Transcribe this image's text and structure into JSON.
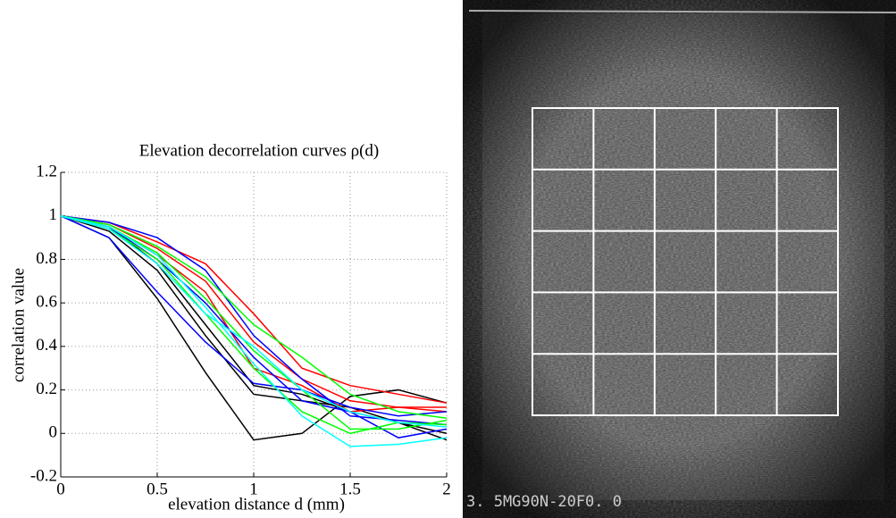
{
  "chart_data": {
    "type": "line",
    "title": "Elevation decorrelation curves ρ(d)",
    "xlabel": "elevation distance d (mm)",
    "ylabel": "correlation value",
    "x": [
      0,
      0.25,
      0.5,
      0.75,
      1,
      1.25,
      1.5,
      1.75,
      2
    ],
    "xlim": [
      0,
      2
    ],
    "xticks": [
      0,
      0.5,
      1,
      1.5,
      2
    ],
    "ylim": [
      -0.2,
      1.2
    ],
    "yticks": [
      -0.2,
      0,
      0.2,
      0.4,
      0.6,
      0.8,
      1,
      1.2
    ],
    "grid": true,
    "series": [
      {
        "color": "#000000",
        "values": [
          1,
          0.9,
          0.62,
          0.28,
          -0.03,
          0,
          0.17,
          0.2,
          0.14
        ]
      },
      {
        "color": "#000000",
        "values": [
          1,
          0.93,
          0.75,
          0.45,
          0.18,
          0.15,
          0.12,
          0.05,
          -0.03
        ]
      },
      {
        "color": "#000000",
        "values": [
          1,
          0.95,
          0.78,
          0.5,
          0.22,
          0.18,
          0.1,
          0.05,
          0
        ]
      },
      {
        "color": "#ff0000",
        "values": [
          1,
          0.97,
          0.88,
          0.78,
          0.55,
          0.3,
          0.22,
          0.18,
          0.14
        ]
      },
      {
        "color": "#ff0000",
        "values": [
          1,
          0.96,
          0.85,
          0.7,
          0.42,
          0.25,
          0.15,
          0.12,
          0.12
        ]
      },
      {
        "color": "#ff0000",
        "values": [
          1,
          0.95,
          0.82,
          0.65,
          0.3,
          0.22,
          0.1,
          0.12,
          0.1
        ]
      },
      {
        "color": "#0000ff",
        "values": [
          1,
          0.97,
          0.9,
          0.75,
          0.45,
          0.25,
          0.08,
          0.06,
          0.04
        ]
      },
      {
        "color": "#0000ff",
        "values": [
          1,
          0.9,
          0.65,
          0.42,
          0.23,
          0.2,
          0.12,
          0.08,
          0.1
        ]
      },
      {
        "color": "#0000ff",
        "values": [
          1,
          0.95,
          0.8,
          0.6,
          0.35,
          0.15,
          0.1,
          -0.02,
          0.02
        ]
      },
      {
        "color": "#00ff00",
        "values": [
          1,
          0.96,
          0.86,
          0.72,
          0.5,
          0.35,
          0.18,
          0.1,
          0.07
        ]
      },
      {
        "color": "#00ff00",
        "values": [
          1,
          0.95,
          0.83,
          0.62,
          0.38,
          0.2,
          0.02,
          0.02,
          0.06
        ]
      },
      {
        "color": "#00ff00",
        "values": [
          1,
          0.94,
          0.8,
          0.55,
          0.3,
          0.1,
          0,
          0.05,
          0.04
        ]
      },
      {
        "color": "#00ffff",
        "values": [
          1,
          0.95,
          0.82,
          0.58,
          0.32,
          0.08,
          -0.06,
          -0.05,
          -0.02
        ]
      },
      {
        "color": "#00ffff",
        "values": [
          1,
          0.94,
          0.78,
          0.55,
          0.4,
          0.2,
          0.1,
          0.05,
          0.03
        ]
      }
    ]
  },
  "image": {
    "caption": "3. 5MG90N-20F0. 0"
  }
}
